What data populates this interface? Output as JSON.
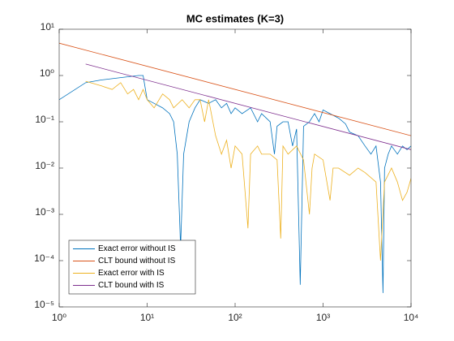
{
  "chart_data": {
    "type": "line",
    "title": "MC estimates (K=3)",
    "xscale": "log",
    "yscale": "log",
    "xlim": [
      1,
      10000
    ],
    "ylim": [
      1e-05,
      10
    ],
    "xticks": [
      {
        "value": 1,
        "label": "10⁰"
      },
      {
        "value": 10,
        "label": "10¹"
      },
      {
        "value": 100,
        "label": "10²"
      },
      {
        "value": 1000,
        "label": "10³"
      },
      {
        "value": 10000,
        "label": "10⁴"
      }
    ],
    "yticks": [
      {
        "value": 1e-05,
        "label": "10⁻⁵"
      },
      {
        "value": 0.0001,
        "label": "10⁻⁴"
      },
      {
        "value": 0.001,
        "label": "10⁻³"
      },
      {
        "value": 0.01,
        "label": "10⁻²"
      },
      {
        "value": 0.1,
        "label": "10⁻¹"
      },
      {
        "value": 1,
        "label": "10⁰"
      },
      {
        "value": 10,
        "label": "10¹"
      }
    ],
    "grid": false,
    "legend": "lower left",
    "series": [
      {
        "name": "Exact error without IS",
        "color": "#0072BD",
        "x": [
          1,
          2,
          3,
          5,
          8,
          9,
          10,
          12,
          15,
          18,
          20,
          22,
          24,
          26,
          30,
          35,
          40,
          50,
          60,
          70,
          80,
          90,
          100,
          120,
          150,
          180,
          200,
          250,
          280,
          300,
          350,
          400,
          450,
          500,
          550,
          600,
          700,
          800,
          900,
          1000,
          1200,
          1500,
          1800,
          2000,
          2500,
          3000,
          3500,
          4000,
          4500,
          4800,
          5000,
          5500,
          6000,
          7000,
          8000,
          9000,
          10000
        ],
        "values": [
          0.3,
          0.7,
          0.8,
          0.9,
          1.0,
          1.0,
          0.3,
          0.25,
          0.2,
          0.15,
          0.1,
          0.02,
          0.0002,
          0.02,
          0.1,
          0.2,
          0.3,
          0.25,
          0.3,
          0.2,
          0.25,
          0.15,
          0.2,
          0.15,
          0.2,
          0.1,
          0.15,
          0.1,
          0.02,
          0.08,
          0.1,
          0.1,
          0.03,
          0.07,
          3e-05,
          0.08,
          0.1,
          0.15,
          0.1,
          0.18,
          0.15,
          0.12,
          0.09,
          0.06,
          0.05,
          0.03,
          0.02,
          0.03,
          0.005,
          2e-05,
          0.01,
          0.02,
          0.03,
          0.02,
          0.03,
          0.025,
          0.03
        ]
      },
      {
        "name": "CLT bound without IS",
        "color": "#D95319",
        "x": [
          1,
          10000
        ],
        "values": [
          5,
          0.05
        ]
      },
      {
        "name": "Exact error with IS",
        "color": "#EDB120",
        "x": [
          2,
          3,
          4,
          5,
          6,
          7,
          8,
          9,
          10,
          12,
          15,
          18,
          20,
          25,
          30,
          35,
          40,
          45,
          50,
          60,
          70,
          80,
          90,
          100,
          120,
          140,
          150,
          180,
          200,
          250,
          300,
          330,
          350,
          400,
          500,
          600,
          700,
          750,
          800,
          1000,
          1200,
          1300,
          1500,
          2000,
          2500,
          3000,
          4000,
          4500,
          5000,
          6000,
          7000,
          8000,
          9000,
          10000
        ],
        "values": [
          0.75,
          0.6,
          0.5,
          0.7,
          0.4,
          0.5,
          0.3,
          0.5,
          0.3,
          0.2,
          0.4,
          0.3,
          0.2,
          0.3,
          0.2,
          0.3,
          0.3,
          0.1,
          0.3,
          0.05,
          0.02,
          0.04,
          0.01,
          0.03,
          0.02,
          0.0005,
          0.02,
          0.03,
          0.02,
          0.02,
          0.015,
          0.0003,
          0.03,
          0.02,
          0.03,
          0.015,
          0.001,
          0.01,
          0.02,
          0.015,
          0.002,
          0.01,
          0.01,
          0.007,
          0.01,
          0.008,
          0.005,
          0.0001,
          0.005,
          0.01,
          0.005,
          0.002,
          0.003,
          0.006
        ]
      },
      {
        "name": "CLT bound with IS",
        "color": "#7E2F8E",
        "x": [
          2,
          10000
        ],
        "values": [
          1.77,
          0.025
        ]
      }
    ]
  }
}
